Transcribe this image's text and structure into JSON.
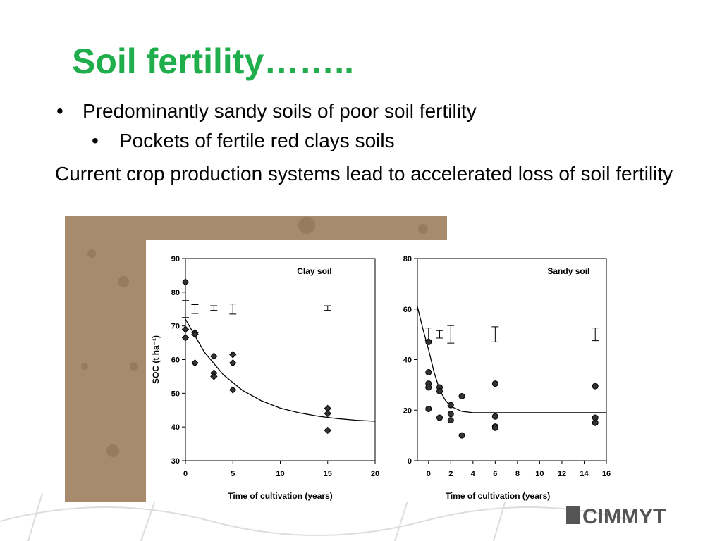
{
  "slide": {
    "title": "Soil fertility……..",
    "bullets": [
      "Predominantly sandy soils of poor soil fertility",
      "Pockets of fertile red clays soils"
    ],
    "paragraph": "Current crop production systems lead to accelerated loss of soil fertility",
    "logo": "CIMMYT"
  },
  "chart_data": [
    {
      "type": "scatter",
      "title": "Clay soil",
      "xlabel": "Time of cultivation (years)",
      "ylabel": "SOC (t ha⁻¹)",
      "xlim": [
        0,
        20
      ],
      "ylim": [
        30,
        90
      ],
      "xticks": [
        0,
        5,
        10,
        15,
        20
      ],
      "yticks": [
        30,
        40,
        50,
        60,
        70,
        80,
        90
      ],
      "marker": "diamond",
      "color": "#000000",
      "points": {
        "x": [
          0,
          0,
          0,
          1,
          1,
          1,
          3,
          3,
          3,
          5,
          5,
          5,
          15,
          15,
          15
        ],
        "values": [
          83,
          69,
          66.5,
          68,
          67.5,
          59,
          61,
          56,
          55,
          61.5,
          59,
          51,
          45.5,
          44,
          39
        ]
      },
      "error_bars": {
        "x": [
          0,
          1,
          3,
          5,
          15
        ],
        "values": [
          75,
          75,
          75.3,
          75,
          75.3
        ],
        "errors": [
          2.5,
          1.3,
          0.7,
          1.5,
          0.7
        ]
      },
      "curve": {
        "x": [
          0,
          2,
          4,
          6,
          8,
          10,
          12,
          14,
          16,
          18,
          20
        ],
        "values": [
          72,
          62.2,
          55.5,
          50.9,
          47.8,
          45.6,
          44.2,
          43.2,
          42.5,
          42,
          41.7
        ]
      }
    },
    {
      "type": "scatter",
      "title": "Sandy soil",
      "xlabel": "Time of cultivation (years)",
      "xlim": [
        -1,
        16
      ],
      "ylim": [
        0,
        80
      ],
      "xticks": [
        0,
        2,
        4,
        6,
        8,
        10,
        12,
        14,
        16
      ],
      "yticks": [
        0,
        20,
        40,
        60,
        80
      ],
      "marker": "circle",
      "color": "#000000",
      "points": {
        "x": [
          0,
          0,
          0,
          0,
          0,
          1,
          1,
          1,
          2,
          2,
          2,
          3,
          3,
          6,
          6,
          6,
          6,
          15,
          15,
          15
        ],
        "values": [
          47,
          35,
          30.5,
          29,
          20.5,
          29,
          27.5,
          17,
          22,
          18.5,
          16,
          25.5,
          10,
          30.5,
          17.5,
          13.5,
          13,
          29.5,
          17,
          15
        ]
      },
      "error_bars": {
        "x": [
          0,
          1,
          2,
          6,
          15
        ],
        "values": [
          50,
          50,
          50,
          50,
          50
        ],
        "errors": [
          2.5,
          1.5,
          3.5,
          3,
          2.5
        ]
      },
      "curve": {
        "x": [
          -1,
          -0.5,
          0,
          0.5,
          1,
          1.5,
          2,
          3,
          4,
          6,
          10,
          16
        ],
        "values": [
          61,
          52,
          44,
          35,
          28,
          24,
          21.5,
          19.5,
          19,
          19,
          19,
          19
        ]
      }
    }
  ]
}
